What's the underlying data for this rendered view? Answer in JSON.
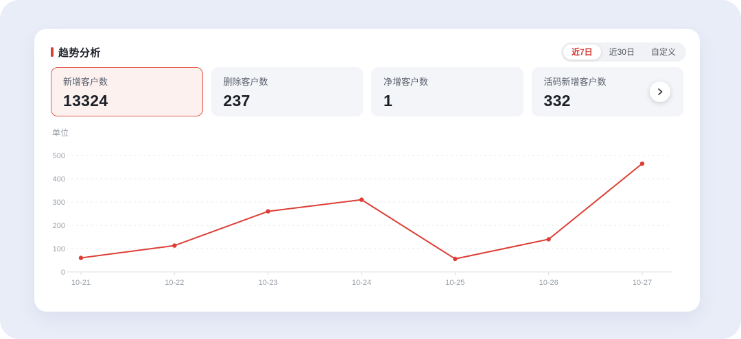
{
  "header": {
    "title": "趋势分析",
    "tabs": [
      {
        "label": "近7日",
        "active": true
      },
      {
        "label": "近30日",
        "active": false
      },
      {
        "label": "自定义",
        "active": false
      }
    ]
  },
  "stats": {
    "cards": [
      {
        "label": "新增客户数",
        "value": "13324",
        "highlighted": true
      },
      {
        "label": "删除客户数",
        "value": "237",
        "highlighted": false
      },
      {
        "label": "净增客户数",
        "value": "1",
        "highlighted": false
      },
      {
        "label": "活码新增客户数",
        "value": "332",
        "highlighted": false
      }
    ],
    "next_button_icon": "chevron-right-icon"
  },
  "chart_data": {
    "type": "line",
    "title": "",
    "unit_label": "单位",
    "categories": [
      "10-21",
      "10-22",
      "10-23",
      "10-24",
      "10-25",
      "10-26",
      "10-27"
    ],
    "series": [
      {
        "name": "新增客户数",
        "values": [
          60,
          113,
          260,
          310,
          56,
          140,
          465
        ]
      }
    ],
    "ylim": [
      0,
      500
    ],
    "y_interval": 100,
    "grid": "horizontal-dashed",
    "legend": "none"
  },
  "colors": {
    "page_bg": "#e9edf8",
    "panel_bg": "#ffffff",
    "accent_red": "#d6403a",
    "line_red": "#dc3e36",
    "hl_card_bg": "#fdf1ef",
    "hl_card_border": "#e25a4e",
    "card_bg": "#f4f5f8",
    "grid_line": "#e9eaec",
    "axis_line": "#dcdfe3",
    "axis_label": "#9aa0a8"
  }
}
